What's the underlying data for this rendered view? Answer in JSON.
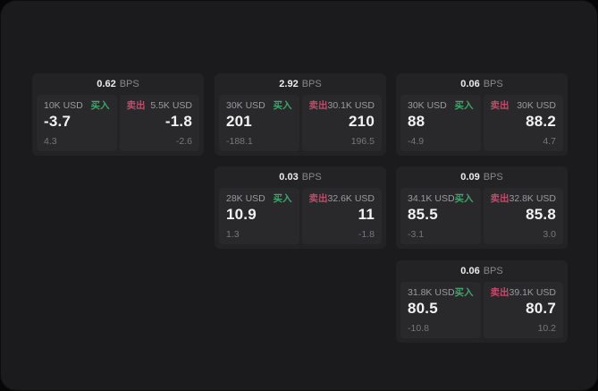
{
  "labels": {
    "bps_unit": "BPS",
    "buy": "买入",
    "sell": "卖出"
  },
  "colors": {
    "canvas_bg": "#1b1b1d",
    "card_bg": "#232325",
    "panel_bg": "#29292c",
    "buy_green": "#3fa56b",
    "sell_red": "#c44a6a",
    "primary_text": "#f2f2f2",
    "muted_text": "#9b9b9f"
  },
  "cards": [
    {
      "bps": "0.62",
      "buy": {
        "size": "10K USD",
        "price": "-3.7",
        "delta": "4.3"
      },
      "sell": {
        "size": "5.5K USD",
        "price": "-1.8",
        "delta": "-2.6"
      }
    },
    {
      "bps": "2.92",
      "buy": {
        "size": "30K USD",
        "price": "201",
        "delta": "-188.1"
      },
      "sell": {
        "size": "30.1K USD",
        "price": "210",
        "delta": "196.5"
      }
    },
    {
      "bps": "0.06",
      "buy": {
        "size": "30K USD",
        "price": "88",
        "delta": "-4.9"
      },
      "sell": {
        "size": "30K USD",
        "price": "88.2",
        "delta": "4.7"
      }
    },
    {
      "bps": "0.03",
      "buy": {
        "size": "28K USD",
        "price": "10.9",
        "delta": "1.3"
      },
      "sell": {
        "size": "32.6K USD",
        "price": "11",
        "delta": "-1.8"
      }
    },
    {
      "bps": "0.09",
      "buy": {
        "size": "34.1K USD",
        "price": "85.5",
        "delta": "-3.1"
      },
      "sell": {
        "size": "32.8K USD",
        "price": "85.8",
        "delta": "3.0"
      }
    },
    {
      "bps": "0.06",
      "buy": {
        "size": "31.8K USD",
        "price": "80.5",
        "delta": "-10.8"
      },
      "sell": {
        "size": "39.1K USD",
        "price": "80.7",
        "delta": "10.2"
      }
    }
  ]
}
